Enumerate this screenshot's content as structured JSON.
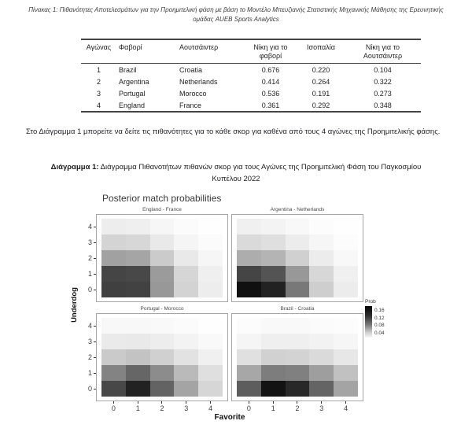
{
  "table_caption": "Πίνακας 1: Πιθανότητες Αποτελεσμάτων για την Προημιτελική φάση με βάση το Μοντέλο Μπευζιανής Στατιστικής Μηχανικής Μάθησης της Ερευνητικής ομάδας AUEB Sports Analytics",
  "table": {
    "headers": [
      "Αγώνας",
      "Φαβορί",
      "Αουτσάιντερ",
      "Νίκη για το φαβορί",
      "Ισοπαλία",
      "Νίκη για το Αουτσάιντερ"
    ],
    "rows": [
      [
        "1",
        "Brazil",
        "Croatia",
        "0.676",
        "0.220",
        "0.104"
      ],
      [
        "2",
        "Argentina",
        "Netherlands",
        "0.414",
        "0.264",
        "0.322"
      ],
      [
        "3",
        "Portugal",
        "Morocco",
        "0.536",
        "0.191",
        "0.273"
      ],
      [
        "4",
        "England",
        "France",
        "0.361",
        "0.292",
        "0.348"
      ]
    ]
  },
  "paragraph": "Στο Διάγραμμα 1 μπορείτε να δείτε τις πιθανότητες για το κάθε σκορ για καθένα από τους 4 αγώνες της Προημιτελικής φάσης.",
  "figure_caption": {
    "label": "Διάγραμμα 1:",
    "text": " Διάγραμμα Πιθανοτήτων πιθανών σκορ για τους Αγώνες της Προημιτελική Φάση του Παγκοσμίου Κυπέλου 2022"
  },
  "chart_data": {
    "type": "heatmap",
    "title": "Posterior match probabilities",
    "xlabel": "Favorite",
    "ylabel": "Underdog",
    "x_ticks": [
      "0",
      "1",
      "2",
      "3",
      "4"
    ],
    "y_ticks": [
      "4",
      "3",
      "2",
      "1",
      "0"
    ],
    "x_range": [
      0,
      4
    ],
    "y_range": [
      0,
      4
    ],
    "grid": "off",
    "legend": {
      "title": "Prob",
      "position": "right",
      "ticks": [
        "0.16",
        "0.12",
        "0.08",
        "0.04"
      ],
      "scale_max": 0.165
    },
    "colors": {
      "high": "#000000",
      "low": "#ffffff"
    },
    "panels": [
      {
        "name": "England - France",
        "position": "top-left",
        "values_by_underdog_score": [
          [
            0.13,
            0.128,
            0.07,
            0.03,
            0.012
          ],
          [
            0.126,
            0.124,
            0.068,
            0.028,
            0.011
          ],
          [
            0.064,
            0.061,
            0.035,
            0.015,
            0.006
          ],
          [
            0.029,
            0.027,
            0.015,
            0.007,
            0.003
          ],
          [
            0.012,
            0.011,
            0.006,
            0.003,
            0.001
          ]
        ]
      },
      {
        "name": "Argentina - Netherlands",
        "position": "top-right",
        "values_by_underdog_score": [
          [
            0.162,
            0.15,
            0.092,
            0.033,
            0.013
          ],
          [
            0.126,
            0.116,
            0.07,
            0.027,
            0.01
          ],
          [
            0.056,
            0.051,
            0.032,
            0.013,
            0.005
          ],
          [
            0.025,
            0.022,
            0.013,
            0.006,
            0.002
          ],
          [
            0.01,
            0.008,
            0.005,
            0.002,
            0.001
          ]
        ]
      },
      {
        "name": "Portugal - Morocco",
        "position": "bottom-left",
        "values_by_underdog_score": [
          [
            0.124,
            0.15,
            0.106,
            0.062,
            0.028
          ],
          [
            0.084,
            0.104,
            0.078,
            0.047,
            0.022
          ],
          [
            0.036,
            0.041,
            0.032,
            0.02,
            0.01
          ],
          [
            0.014,
            0.015,
            0.012,
            0.008,
            0.004
          ],
          [
            0.005,
            0.005,
            0.004,
            0.003,
            0.001
          ]
        ]
      },
      {
        "name": "Brazil - Croatia",
        "position": "bottom-right",
        "values_by_underdog_score": [
          [
            0.11,
            0.16,
            0.146,
            0.105,
            0.062
          ],
          [
            0.06,
            0.088,
            0.086,
            0.066,
            0.042
          ],
          [
            0.021,
            0.031,
            0.03,
            0.025,
            0.016
          ],
          [
            0.007,
            0.011,
            0.011,
            0.009,
            0.006
          ],
          [
            0.002,
            0.004,
            0.004,
            0.003,
            0.002
          ]
        ]
      }
    ]
  }
}
